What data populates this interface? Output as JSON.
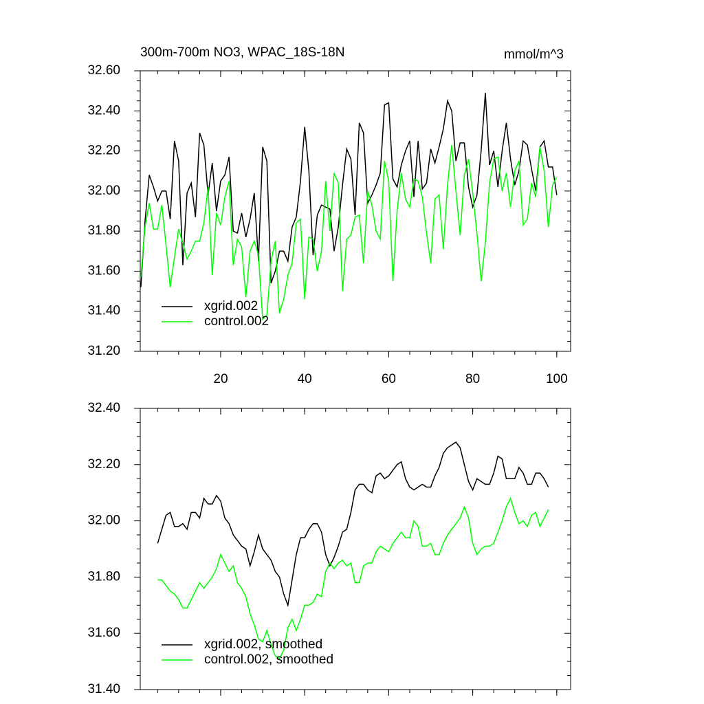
{
  "chart_data": [
    {
      "type": "line",
      "title": "300m-700m NO3, WPAC_18S-18N",
      "units": "mmol/m^3",
      "x": [
        1,
        2,
        3,
        4,
        5,
        6,
        7,
        8,
        9,
        10,
        11,
        12,
        13,
        14,
        15,
        16,
        17,
        18,
        19,
        20,
        21,
        22,
        23,
        24,
        25,
        26,
        27,
        28,
        29,
        30,
        31,
        32,
        33,
        34,
        35,
        36,
        37,
        38,
        39,
        40,
        41,
        42,
        43,
        44,
        45,
        46,
        47,
        48,
        49,
        50,
        51,
        52,
        53,
        54,
        55,
        56,
        57,
        58,
        59,
        60,
        61,
        62,
        63,
        64,
        65,
        66,
        67,
        68,
        69,
        70,
        71,
        72,
        73,
        74,
        75,
        76,
        77,
        78,
        79,
        80,
        81,
        82,
        83,
        84,
        85,
        86,
        87,
        88,
        89,
        90,
        91,
        92,
        93,
        94,
        95,
        96,
        97,
        98,
        99,
        100
      ],
      "series": [
        {
          "name": "xgrid.002",
          "color": "#000000",
          "values": [
            31.52,
            31.85,
            32.08,
            32.02,
            31.95,
            32.0,
            32.0,
            31.86,
            32.25,
            32.15,
            31.63,
            31.99,
            32.04,
            31.87,
            32.29,
            32.23,
            31.98,
            32.14,
            31.9,
            32.05,
            32.08,
            32.17,
            31.8,
            31.79,
            31.89,
            31.77,
            31.86,
            31.99,
            31.65,
            32.22,
            32.15,
            31.54,
            31.6,
            31.7,
            31.7,
            31.65,
            31.82,
            31.87,
            32.05,
            32.32,
            32.1,
            31.68,
            31.88,
            31.93,
            31.92,
            31.91,
            31.7,
            31.82,
            32.03,
            32.21,
            32.16,
            31.88,
            32.34,
            32.29,
            31.94,
            31.98,
            32.03,
            32.09,
            32.43,
            32.44,
            32.06,
            32.02,
            32.13,
            32.2,
            32.25,
            31.97,
            32.25,
            32.01,
            32.04,
            32.21,
            32.14,
            32.22,
            32.31,
            32.45,
            32.4,
            32.15,
            32.24,
            32.24,
            32.02,
            31.92,
            31.98,
            32.2,
            32.49,
            32.13,
            32.2,
            32.02,
            32.2,
            32.34,
            32.16,
            32.03,
            32.1,
            32.25,
            32.23,
            32.11,
            32.0,
            32.22,
            32.25,
            32.12,
            32.12,
            31.98
          ]
        },
        {
          "name": "control.002",
          "color": "#00ff00",
          "values": [
            31.57,
            31.82,
            31.94,
            31.81,
            31.81,
            31.93,
            31.73,
            31.52,
            31.67,
            31.81,
            31.74,
            31.66,
            31.7,
            31.75,
            31.75,
            31.84,
            32.02,
            31.58,
            31.89,
            31.83,
            31.97,
            32.05,
            31.63,
            31.76,
            31.72,
            31.47,
            31.7,
            31.75,
            31.68,
            31.36,
            31.38,
            31.65,
            31.75,
            31.39,
            31.46,
            31.58,
            31.64,
            31.84,
            31.86,
            31.46,
            31.77,
            31.76,
            31.6,
            31.7,
            32.05,
            31.8,
            32.09,
            32.04,
            31.5,
            31.76,
            31.78,
            31.87,
            31.88,
            31.64,
            32.0,
            31.93,
            31.8,
            31.76,
            32.15,
            32.05,
            31.55,
            31.9,
            32.09,
            31.96,
            31.92,
            32.06,
            32.05,
            31.97,
            31.79,
            31.64,
            31.96,
            31.98,
            31.71,
            32.03,
            32.23,
            32.0,
            31.78,
            32.08,
            32.16,
            31.99,
            31.79,
            31.55,
            31.74,
            32.04,
            32.16,
            32.17,
            32.0,
            32.09,
            31.92,
            32.1,
            32.15,
            31.83,
            31.86,
            32.04,
            31.97,
            32.22,
            32.1,
            31.82,
            32.03,
            32.07
          ]
        }
      ],
      "xlim": [
        0.86,
        103.3
      ],
      "xticks": [
        20,
        40,
        60,
        80,
        100
      ],
      "ylim": [
        31.2,
        32.6
      ],
      "yticks": [
        {
          "value": 31.2,
          "label": "31.20"
        },
        {
          "value": 31.4,
          "label": "31.40"
        },
        {
          "value": 31.6,
          "label": "31.60"
        },
        {
          "value": 31.8,
          "label": "31.80"
        },
        {
          "value": 32.0,
          "label": "32.00"
        },
        {
          "value": 32.2,
          "label": "32.20"
        },
        {
          "value": 32.4,
          "label": "32.40"
        },
        {
          "value": 32.6,
          "label": "32.60"
        }
      ],
      "legend": "lower left"
    },
    {
      "type": "line",
      "x": [
        5,
        6,
        7,
        8,
        9,
        10,
        11,
        12,
        13,
        14,
        15,
        16,
        17,
        18,
        19,
        20,
        21,
        22,
        23,
        24,
        25,
        26,
        27,
        28,
        29,
        30,
        31,
        32,
        33,
        34,
        35,
        36,
        37,
        38,
        39,
        40,
        41,
        42,
        43,
        44,
        45,
        46,
        47,
        48,
        49,
        50,
        51,
        52,
        53,
        54,
        55,
        56,
        57,
        58,
        59,
        60,
        61,
        62,
        63,
        64,
        65,
        66,
        67,
        68,
        69,
        70,
        71,
        72,
        73,
        74,
        75,
        76,
        77,
        78,
        79,
        80,
        81,
        82,
        83,
        84,
        85,
        86,
        87,
        88,
        89,
        90,
        91,
        92,
        93,
        94,
        95,
        96,
        97,
        98
      ],
      "series": [
        {
          "name": "xgrid.002, smoothed",
          "color": "#000000",
          "values": [
            31.92,
            31.97,
            32.02,
            32.03,
            31.98,
            31.98,
            31.99,
            31.97,
            32.03,
            32.03,
            32.01,
            32.08,
            32.06,
            32.06,
            32.09,
            32.07,
            32.01,
            31.99,
            31.95,
            31.93,
            31.91,
            31.9,
            31.84,
            31.89,
            31.95,
            31.9,
            31.88,
            31.86,
            31.82,
            31.8,
            31.74,
            31.7,
            31.79,
            31.88,
            31.94,
            31.94,
            31.97,
            31.99,
            31.99,
            31.96,
            31.88,
            31.84,
            31.87,
            31.91,
            31.96,
            31.97,
            32.03,
            32.11,
            32.13,
            32.13,
            32.11,
            32.1,
            32.16,
            32.17,
            32.15,
            32.16,
            32.18,
            32.2,
            32.21,
            32.15,
            32.12,
            32.11,
            32.12,
            32.13,
            32.12,
            32.12,
            32.16,
            32.19,
            32.24,
            32.26,
            32.27,
            32.28,
            32.26,
            32.2,
            32.14,
            32.11,
            32.15,
            32.14,
            32.13,
            32.13,
            32.17,
            32.23,
            32.22,
            32.15,
            32.15,
            32.15,
            32.19,
            32.17,
            32.13,
            32.13,
            32.17,
            32.17,
            32.15,
            32.12
          ]
        },
        {
          "name": "control.002, smoothed",
          "color": "#00ff00",
          "values": [
            31.79,
            31.79,
            31.77,
            31.75,
            31.74,
            31.72,
            31.69,
            31.69,
            31.72,
            31.75,
            31.78,
            31.76,
            31.78,
            31.8,
            31.83,
            31.88,
            31.85,
            31.82,
            31.84,
            31.78,
            31.76,
            31.73,
            31.67,
            31.63,
            31.58,
            31.57,
            31.61,
            31.56,
            31.52,
            31.51,
            31.54,
            31.62,
            31.65,
            31.61,
            31.65,
            31.7,
            31.7,
            31.71,
            31.74,
            31.73,
            31.82,
            31.85,
            31.83,
            31.85,
            31.86,
            31.84,
            31.85,
            31.78,
            31.78,
            31.84,
            31.85,
            31.85,
            31.89,
            31.91,
            31.9,
            31.89,
            31.92,
            31.94,
            31.96,
            31.94,
            31.94,
            32.0,
            31.98,
            31.91,
            31.91,
            31.92,
            31.88,
            31.88,
            31.92,
            31.95,
            31.97,
            31.99,
            32.01,
            32.05,
            32.01,
            31.92,
            31.88,
            31.9,
            31.91,
            31.91,
            31.92,
            31.96,
            32.0,
            32.05,
            32.08,
            32.03,
            31.99,
            32.0,
            31.98,
            32.02,
            32.03,
            31.98,
            32.01,
            32.04
          ]
        }
      ],
      "xlim": [
        0.86,
        103.3
      ],
      "xticks": [
        20,
        40,
        60,
        80,
        100
      ],
      "ylim": [
        31.4,
        32.4
      ],
      "yticks": [
        {
          "value": 31.4,
          "label": "31.40"
        },
        {
          "value": 31.6,
          "label": "31.60"
        },
        {
          "value": 31.8,
          "label": "31.80"
        },
        {
          "value": 32.0,
          "label": "32.00"
        },
        {
          "value": 32.2,
          "label": "32.20"
        },
        {
          "value": 32.4,
          "label": "32.40"
        }
      ],
      "legend": "lower left"
    }
  ]
}
